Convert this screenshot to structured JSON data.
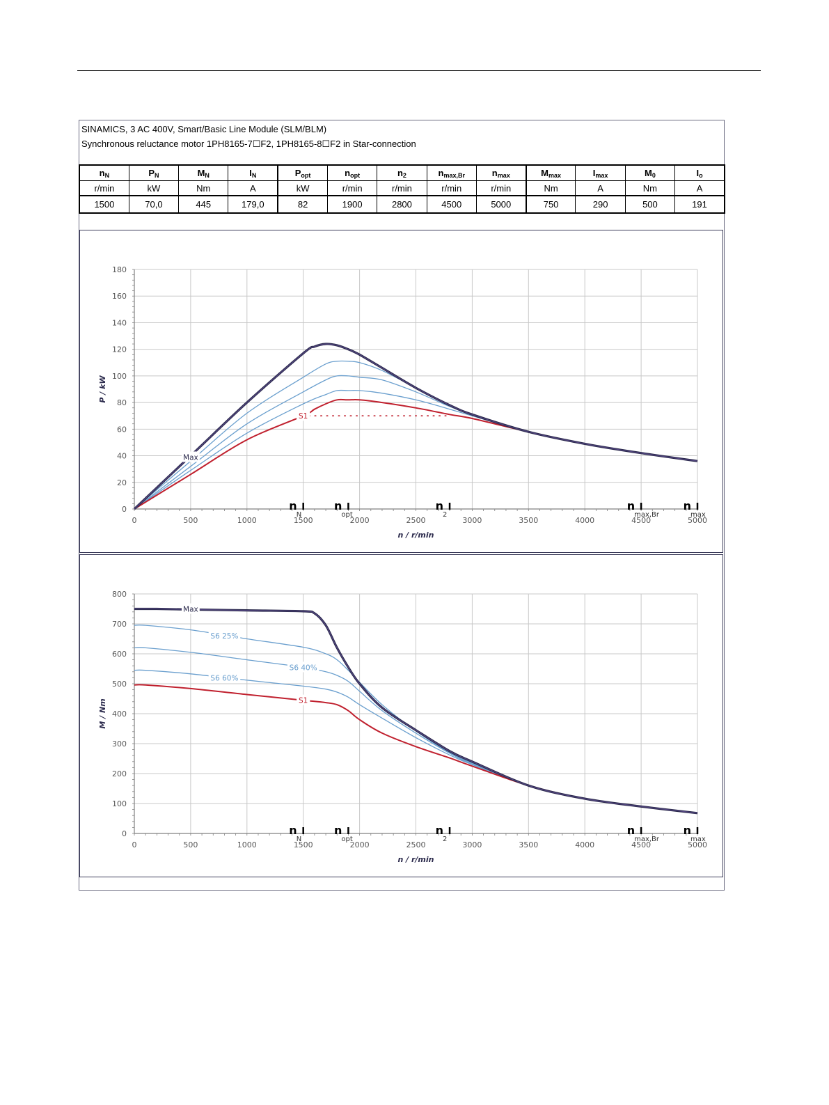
{
  "header": {
    "line1": "SINAMICS, 3 AC 400V, Smart/Basic Line Module (SLM/BLM)",
    "line2": "Synchronous reluctance motor  1PH8165-7☐F2,  1PH8165-8☐F2   in Star-connection"
  },
  "spec_table": {
    "columns": [
      {
        "sym": "n",
        "sub": "N",
        "unit": "r/min",
        "value": "1500"
      },
      {
        "sym": "P",
        "sub": "N",
        "unit": "kW",
        "value": "70,0"
      },
      {
        "sym": "M",
        "sub": "N",
        "unit": "Nm",
        "value": "445"
      },
      {
        "sym": "I",
        "sub": "N",
        "unit": "A",
        "value": "179,0"
      },
      {
        "sym": "P",
        "sub": "opt",
        "unit": "kW",
        "value": "82"
      },
      {
        "sym": "n",
        "sub": "opt",
        "unit": "r/min",
        "value": "1900"
      },
      {
        "sym": "n",
        "sub": "2",
        "unit": "r/min",
        "value": "2800"
      },
      {
        "sym": "n",
        "sub": "max,Br",
        "unit": "r/min",
        "value": "4500"
      },
      {
        "sym": "n",
        "sub": "max",
        "unit": "r/min",
        "value": "5000"
      },
      {
        "sym": "M",
        "sub": "max",
        "unit": "Nm",
        "value": "750"
      },
      {
        "sym": "I",
        "sub": "max",
        "unit": "A",
        "value": "290"
      },
      {
        "sym": "M",
        "sub": "0",
        "unit": "Nm",
        "value": "500"
      },
      {
        "sym": "I",
        "sub": "o",
        "unit": "A",
        "value": "191"
      }
    ]
  },
  "colors": {
    "max": "#2b2a4c",
    "s6": "#6a9fce",
    "s1": "#c0202e",
    "grid": "#c8c8c8",
    "axis": "#808080"
  },
  "markers": [
    {
      "n": 1500,
      "sym": "n",
      "sub": "N"
    },
    {
      "n": 1900,
      "sym": "n",
      "sub": "opt"
    },
    {
      "n": 2800,
      "sym": "n",
      "sub": "2"
    },
    {
      "n": 4500,
      "sym": "n",
      "sub": "max,Br"
    },
    {
      "n": 5000,
      "sym": "n",
      "sub": "max"
    }
  ],
  "chart_data": [
    {
      "type": "line",
      "ylabel": "P / kW",
      "xlabel": "n / r/min",
      "xlim": [
        0,
        5000
      ],
      "ylim": [
        0,
        180
      ],
      "xticks": [
        0,
        500,
        1000,
        1500,
        2000,
        2500,
        3000,
        3500,
        4000,
        4500,
        5000
      ],
      "yticks": [
        0,
        20,
        40,
        60,
        80,
        100,
        120,
        140,
        160,
        180
      ],
      "grid": true,
      "series": [
        {
          "name": "Max",
          "role": "max",
          "x": [
            0,
            500,
            1000,
            1500,
            1600,
            1700,
            1800,
            1900,
            2000,
            2200,
            2500,
            2800,
            3000,
            3500,
            4000,
            4500,
            5000
          ],
          "y": [
            0,
            40,
            80,
            117,
            122,
            124,
            123,
            120,
            116,
            106,
            91,
            78,
            71,
            58,
            49,
            42,
            36
          ]
        },
        {
          "role": "s6",
          "x": [
            0,
            500,
            1000,
            1500,
            1700,
            1800,
            1900,
            2000,
            2200,
            2500,
            2800,
            3000,
            3500,
            4000,
            4500,
            5000
          ],
          "y": [
            0,
            36,
            72,
            99,
            109,
            111,
            111,
            110,
            104,
            91,
            78,
            71,
            58,
            49,
            42,
            36
          ]
        },
        {
          "role": "s6",
          "x": [
            0,
            500,
            1000,
            1500,
            1700,
            1800,
            1900,
            2000,
            2200,
            2500,
            2800,
            3000,
            3500,
            4000,
            4500,
            5000
          ],
          "y": [
            0,
            32,
            64,
            88,
            97,
            100,
            100,
            99,
            97,
            88,
            77,
            71,
            58,
            49,
            42,
            36
          ]
        },
        {
          "role": "s6",
          "x": [
            0,
            500,
            1000,
            1500,
            1700,
            1800,
            1900,
            2000,
            2200,
            2500,
            2800,
            3000,
            3500,
            4000,
            4500,
            5000
          ],
          "y": [
            0,
            29,
            57,
            79,
            86,
            89,
            89,
            89,
            87,
            82,
            75,
            70,
            58,
            49,
            42,
            36
          ]
        },
        {
          "name": "S1",
          "role": "s1",
          "x": [
            0,
            500,
            1000,
            1500,
            1600,
            1700,
            1800,
            1900,
            2000,
            2200,
            2500,
            2800,
            3000,
            3500,
            4000,
            4500,
            5000
          ],
          "y": [
            0,
            26,
            52,
            70,
            75,
            79,
            82,
            82,
            82,
            80,
            76,
            71,
            68,
            58,
            49,
            42,
            36
          ]
        }
      ],
      "annotations": [
        {
          "text": "Max",
          "x": 500,
          "y": 39,
          "role": "max"
        },
        {
          "text": "S1",
          "x": 1500,
          "y": 70,
          "role": "s1"
        }
      ],
      "rated_line": {
        "x": [
          1550,
          2800
        ],
        "y": 70
      }
    },
    {
      "type": "line",
      "ylabel": "M / Nm",
      "xlabel": "n / r/min",
      "xlim": [
        0,
        5000
      ],
      "ylim": [
        0,
        800
      ],
      "xticks": [
        0,
        500,
        1000,
        1500,
        2000,
        2500,
        3000,
        3500,
        4000,
        4500,
        5000
      ],
      "yticks": [
        0,
        100,
        200,
        300,
        400,
        500,
        600,
        700,
        800
      ],
      "grid": true,
      "series": [
        {
          "name": "Max",
          "role": "max",
          "x": [
            0,
            200,
            500,
            1000,
            1500,
            1600,
            1700,
            1800,
            1900,
            2000,
            2200,
            2500,
            2800,
            3000,
            3500,
            4000,
            4500,
            5000
          ],
          "y": [
            750,
            750,
            748,
            745,
            742,
            735,
            695,
            620,
            555,
            500,
            420,
            345,
            275,
            240,
            160,
            116,
            90,
            68
          ]
        },
        {
          "name": "S6 25%",
          "role": "s6",
          "x": [
            0,
            100,
            500,
            1000,
            1500,
            1700,
            1800,
            1900,
            2000,
            2200,
            2500,
            2800,
            3000,
            3500,
            4000,
            4500,
            5000
          ],
          "y": [
            695,
            695,
            680,
            650,
            622,
            600,
            580,
            545,
            505,
            430,
            342,
            270,
            235,
            160,
            116,
            90,
            68
          ]
        },
        {
          "name": "S6 40%",
          "role": "s6",
          "x": [
            0,
            100,
            500,
            1000,
            1500,
            1700,
            1800,
            1900,
            2000,
            2200,
            2500,
            2800,
            3000,
            3500,
            4000,
            4500,
            5000
          ],
          "y": [
            620,
            620,
            605,
            580,
            555,
            540,
            528,
            508,
            475,
            410,
            335,
            268,
            232,
            160,
            116,
            90,
            68
          ]
        },
        {
          "name": "S6 60%",
          "role": "s6",
          "x": [
            0,
            100,
            500,
            1000,
            1500,
            1700,
            1800,
            1900,
            2000,
            2200,
            2500,
            2800,
            3000,
            3500,
            4000,
            4500,
            5000
          ],
          "y": [
            545,
            545,
            533,
            512,
            492,
            482,
            472,
            455,
            430,
            385,
            320,
            262,
            230,
            160,
            116,
            90,
            68
          ]
        },
        {
          "name": "S1",
          "role": "s1",
          "x": [
            0,
            100,
            500,
            1000,
            1500,
            1700,
            1800,
            1900,
            2000,
            2200,
            2500,
            2800,
            3000,
            3500,
            4000,
            4500,
            5000
          ],
          "y": [
            496,
            496,
            484,
            464,
            445,
            437,
            430,
            410,
            380,
            335,
            290,
            252,
            225,
            160,
            116,
            90,
            68
          ]
        }
      ],
      "annotations": [
        {
          "text": "Max",
          "x": 500,
          "y": 750,
          "role": "max"
        },
        {
          "text": "S6 25%",
          "x": 800,
          "y": 660,
          "role": "s6"
        },
        {
          "text": "S6 40%",
          "x": 1500,
          "y": 555,
          "role": "s6"
        },
        {
          "text": "S6 60%",
          "x": 800,
          "y": 520,
          "role": "s6"
        },
        {
          "text": "S1",
          "x": 1500,
          "y": 445,
          "role": "s1"
        }
      ]
    }
  ]
}
